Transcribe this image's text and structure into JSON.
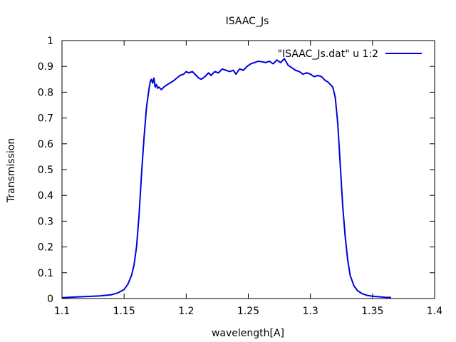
{
  "chart_data": {
    "type": "line",
    "title": "ISAAC_Js",
    "xlabel": "wavelength[A]",
    "ylabel": "Transmission",
    "xlim": [
      1.1,
      1.4
    ],
    "ylim": [
      0,
      1
    ],
    "x_ticks": [
      "1.1",
      "1.15",
      "1.2",
      "1.25",
      "1.3",
      "1.35",
      "1.4"
    ],
    "y_ticks": [
      "0",
      "0.1",
      "0.2",
      "0.3",
      "0.4",
      "0.5",
      "0.6",
      "0.7",
      "0.8",
      "0.9",
      "1"
    ],
    "grid": false,
    "legend_position": "top-right",
    "series": [
      {
        "name": "\"ISAAC_Js.dat\" u 1:2",
        "color": "#0000dd",
        "x": [
          1.1,
          1.11,
          1.12,
          1.13,
          1.14,
          1.145,
          1.15,
          1.153,
          1.156,
          1.158,
          1.16,
          1.162,
          1.164,
          1.166,
          1.168,
          1.17,
          1.171,
          1.172,
          1.173,
          1.174,
          1.175,
          1.176,
          1.177,
          1.178,
          1.18,
          1.182,
          1.185,
          1.19,
          1.195,
          1.198,
          1.2,
          1.202,
          1.205,
          1.208,
          1.21,
          1.212,
          1.215,
          1.218,
          1.22,
          1.223,
          1.226,
          1.229,
          1.232,
          1.235,
          1.238,
          1.24,
          1.243,
          1.246,
          1.249,
          1.252,
          1.255,
          1.258,
          1.261,
          1.264,
          1.267,
          1.27,
          1.273,
          1.276,
          1.279,
          1.282,
          1.285,
          1.288,
          1.291,
          1.294,
          1.297,
          1.3,
          1.303,
          1.306,
          1.309,
          1.312,
          1.314,
          1.316,
          1.318,
          1.32,
          1.322,
          1.324,
          1.326,
          1.328,
          1.33,
          1.332,
          1.335,
          1.338,
          1.342,
          1.346,
          1.35,
          1.355,
          1.36,
          1.365
        ],
        "values": [
          0.003,
          0.006,
          0.008,
          0.01,
          0.015,
          0.022,
          0.035,
          0.055,
          0.09,
          0.13,
          0.2,
          0.32,
          0.48,
          0.62,
          0.74,
          0.81,
          0.84,
          0.85,
          0.835,
          0.855,
          0.82,
          0.83,
          0.815,
          0.82,
          0.81,
          0.82,
          0.83,
          0.845,
          0.865,
          0.87,
          0.88,
          0.875,
          0.88,
          0.865,
          0.855,
          0.85,
          0.86,
          0.875,
          0.865,
          0.88,
          0.875,
          0.89,
          0.885,
          0.88,
          0.885,
          0.87,
          0.89,
          0.885,
          0.9,
          0.91,
          0.915,
          0.92,
          0.918,
          0.915,
          0.92,
          0.91,
          0.925,
          0.915,
          0.93,
          0.905,
          0.895,
          0.885,
          0.88,
          0.87,
          0.875,
          0.87,
          0.86,
          0.865,
          0.86,
          0.845,
          0.84,
          0.83,
          0.82,
          0.78,
          0.68,
          0.52,
          0.36,
          0.24,
          0.15,
          0.09,
          0.05,
          0.03,
          0.018,
          0.012,
          0.009,
          0.007,
          0.005,
          0.004
        ]
      }
    ]
  }
}
